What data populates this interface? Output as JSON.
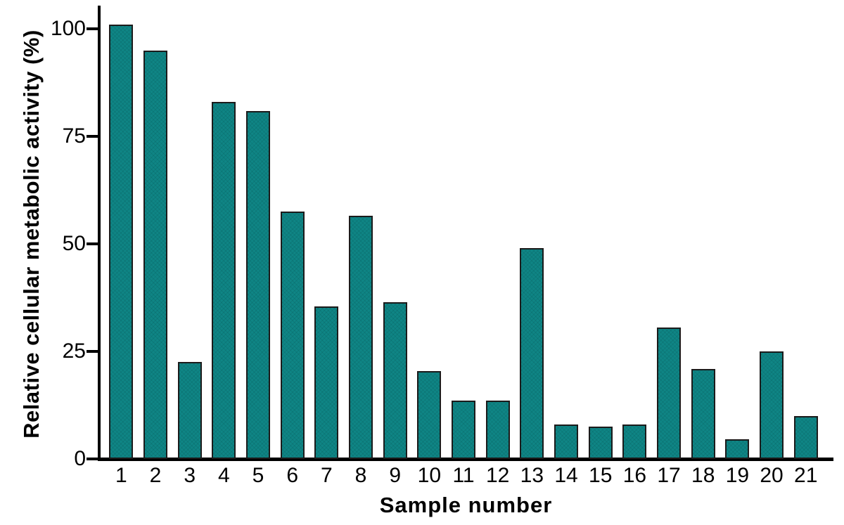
{
  "figure": {
    "background_color": "#ffffff",
    "text_color": "#000000",
    "axis_color": "#000000"
  },
  "chart_data": {
    "type": "bar",
    "title": "",
    "xlabel": "Sample number",
    "ylabel": "Relative cellular metabolic activity (%)",
    "categories": [
      "1",
      "2",
      "3",
      "4",
      "5",
      "6",
      "7",
      "8",
      "9",
      "10",
      "11",
      "12",
      "13",
      "14",
      "15",
      "16",
      "17",
      "18",
      "19",
      "20",
      "21"
    ],
    "values": [
      101,
      95,
      22.5,
      83,
      81,
      57.5,
      35.5,
      56.5,
      36.5,
      20.5,
      13.5,
      13.5,
      49,
      8,
      7.5,
      8,
      30.5,
      21,
      4.5,
      25,
      10
    ],
    "yticks": [
      0,
      25,
      50,
      75,
      100
    ],
    "ylim": [
      0,
      105
    ],
    "grid": false,
    "legend": null,
    "bar_color": "#0f8585",
    "bar_border_color": "#1b1b1b"
  }
}
